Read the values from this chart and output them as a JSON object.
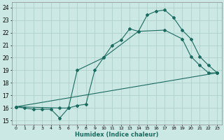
{
  "xlabel": "Humidex (Indice chaleur)",
  "bg_color": "#cce8e4",
  "grid_color": "#b8d8d4",
  "line_color": "#1a6b60",
  "xlim": [
    -0.5,
    23.5
  ],
  "ylim": [
    14.7,
    24.4
  ],
  "xticks": [
    0,
    1,
    2,
    3,
    4,
    5,
    6,
    7,
    8,
    9,
    10,
    11,
    12,
    13,
    14,
    15,
    16,
    17,
    18,
    19,
    20,
    21,
    22,
    23
  ],
  "yticks": [
    15,
    16,
    17,
    18,
    19,
    20,
    21,
    22,
    23,
    24
  ],
  "curve1_x": [
    0,
    1,
    2,
    3,
    4,
    5,
    6,
    7,
    8,
    9,
    10,
    11,
    12,
    13,
    14,
    15,
    16,
    17,
    18,
    19,
    20,
    21,
    22,
    23
  ],
  "curve1_y": [
    16.1,
    16.0,
    15.9,
    15.9,
    15.9,
    15.2,
    16.0,
    16.2,
    16.3,
    19.0,
    20.0,
    21.0,
    21.4,
    22.3,
    22.1,
    23.4,
    23.7,
    23.8,
    23.2,
    22.2,
    21.5,
    20.1,
    19.4,
    18.8
  ],
  "curve2_x": [
    0,
    5,
    6,
    7,
    10,
    14,
    17,
    19,
    20,
    21,
    22,
    23
  ],
  "curve2_y": [
    16.1,
    16.0,
    16.0,
    19.0,
    20.0,
    22.1,
    22.2,
    21.5,
    20.1,
    19.4,
    18.8,
    18.8
  ],
  "curve3_x": [
    0,
    23
  ],
  "curve3_y": [
    16.1,
    18.8
  ]
}
